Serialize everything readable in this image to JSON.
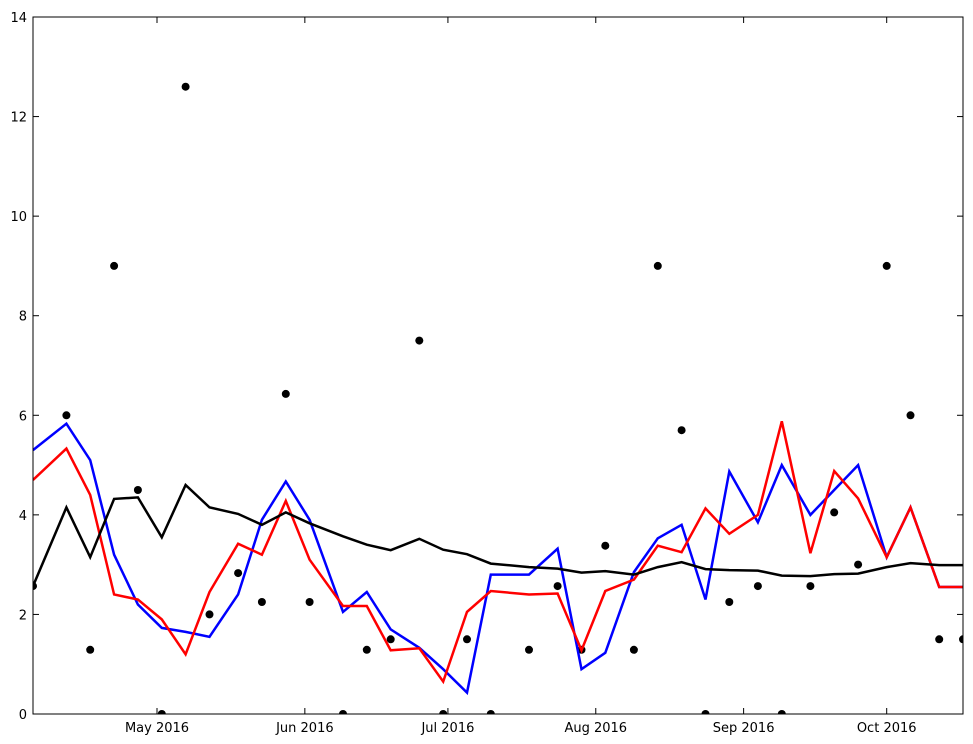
{
  "chart_data": {
    "type": "line",
    "title": "",
    "xlabel": "",
    "ylabel": "",
    "xlim": [
      "2016-04-05",
      "2016-10-17"
    ],
    "ylim": [
      0,
      14
    ],
    "grid": false,
    "x_ticks": [
      {
        "date": "2016-05-01",
        "label": "May 2016"
      },
      {
        "date": "2016-06-01",
        "label": "Jun 2016"
      },
      {
        "date": "2016-07-01",
        "label": "Jul 2016"
      },
      {
        "date": "2016-08-01",
        "label": "Aug 2016"
      },
      {
        "date": "2016-09-01",
        "label": "Sep 2016"
      },
      {
        "date": "2016-10-01",
        "label": "Oct 2016"
      }
    ],
    "y_ticks": [
      0,
      2,
      4,
      6,
      8,
      10,
      12,
      14
    ],
    "x": [
      "2016-04-05",
      "2016-04-12",
      "2016-04-17",
      "2016-04-22",
      "2016-04-27",
      "2016-05-02",
      "2016-05-07",
      "2016-05-12",
      "2016-05-18",
      "2016-05-23",
      "2016-05-28",
      "2016-06-02",
      "2016-06-09",
      "2016-06-14",
      "2016-06-19",
      "2016-06-25",
      "2016-06-30",
      "2016-07-05",
      "2016-07-10",
      "2016-07-18",
      "2016-07-24",
      "2016-07-29",
      "2016-08-03",
      "2016-08-09",
      "2016-08-14",
      "2016-08-19",
      "2016-08-24",
      "2016-08-29",
      "2016-09-04",
      "2016-09-09",
      "2016-09-15",
      "2016-09-20",
      "2016-09-25",
      "2016-10-01",
      "2016-10-06",
      "2016-10-12",
      "2016-10-17"
    ],
    "series": [
      {
        "color": "#000000",
        "style": "markers",
        "values": [
          2.57,
          6.0,
          1.29,
          9.0,
          4.5,
          0.0,
          12.6,
          2.0,
          2.83,
          2.25,
          6.43,
          2.25,
          0.0,
          1.29,
          1.5,
          7.5,
          0.0,
          1.5,
          0.0,
          1.29,
          2.57,
          1.29,
          3.38,
          1.29,
          9.0,
          5.7,
          0.0,
          2.25,
          2.57,
          0.0,
          2.57,
          4.05,
          3.0,
          9.0,
          6.0,
          1.5,
          1.5
        ]
      },
      {
        "color": "#0000ff",
        "style": "line",
        "values": [
          5.3,
          5.83,
          5.1,
          3.2,
          2.2,
          1.73,
          1.65,
          1.55,
          2.4,
          3.9,
          4.67,
          3.9,
          2.05,
          2.45,
          1.7,
          1.33,
          0.9,
          0.43,
          2.8,
          2.8,
          3.32,
          0.9,
          1.23,
          2.85,
          3.53,
          3.8,
          2.3,
          4.87,
          3.85,
          5.0,
          4.0,
          4.5,
          5.0,
          3.15,
          4.15,
          2.55,
          2.55
        ]
      },
      {
        "color": "#ff0000",
        "style": "line",
        "values": [
          4.7,
          5.33,
          4.4,
          2.4,
          2.3,
          1.9,
          1.2,
          2.45,
          3.42,
          3.2,
          4.28,
          3.1,
          2.17,
          2.17,
          1.28,
          1.32,
          0.65,
          2.05,
          2.47,
          2.4,
          2.42,
          1.28,
          2.47,
          2.7,
          3.38,
          3.25,
          4.13,
          3.62,
          4.0,
          5.88,
          3.23,
          4.88,
          4.33,
          3.15,
          4.15,
          2.55,
          2.55
        ]
      },
      {
        "color": "#000000",
        "style": "line",
        "values": [
          2.57,
          4.15,
          3.15,
          4.32,
          4.35,
          3.55,
          4.6,
          4.15,
          4.02,
          3.8,
          4.05,
          3.83,
          3.57,
          3.4,
          3.29,
          3.52,
          3.3,
          3.21,
          3.02,
          2.95,
          2.92,
          2.84,
          2.87,
          2.8,
          2.95,
          3.05,
          2.91,
          2.89,
          2.88,
          2.78,
          2.77,
          2.81,
          2.82,
          2.95,
          3.03,
          2.99,
          2.99
        ]
      }
    ]
  }
}
